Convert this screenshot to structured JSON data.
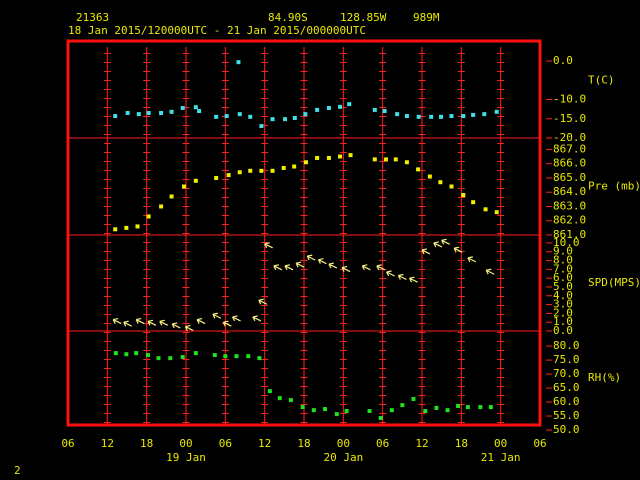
{
  "header": {
    "station": "21363",
    "latitude": "84.90S",
    "longitude": "128.85W",
    "elevation": "989M",
    "period": "18 Jan 2015/120000UTC - 21 Jan 2015/000000UTC"
  },
  "footer": "2",
  "chart_data": [
    {
      "type": "scatter",
      "ylabel": "T(C)",
      "color": "#40e0e8",
      "x": [
        13.2,
        15.1,
        16.8,
        18.3,
        20.2,
        21.8,
        23.5,
        25.5,
        26.0,
        28.6,
        30.2,
        32.0,
        32.2,
        33.8,
        35.5,
        37.2,
        39.1,
        40.6,
        42.2,
        44.0,
        45.8,
        47.5,
        48.9,
        52.8,
        54.3,
        56.2,
        57.7,
        59.5,
        61.4,
        62.9,
        64.5,
        66.3,
        67.8,
        69.5,
        71.4
      ],
      "values": [
        -14.3,
        -13.5,
        -13.8,
        -13.5,
        -13.5,
        -13.2,
        -12.2,
        -12.0,
        -13.0,
        -14.5,
        -14.3,
        -0.3,
        -13.8,
        -14.5,
        -16.9,
        -15.1,
        -15.1,
        -14.8,
        -13.8,
        -12.7,
        -12.2,
        -11.9,
        -11.2,
        -12.7,
        -13.0,
        -13.8,
        -14.3,
        -14.5,
        -14.5,
        -14.5,
        -14.3,
        -14.3,
        -14.0,
        -13.8,
        -13.2
      ],
      "ylim": [
        -20,
        5.2
      ],
      "yticks": [
        {
          "value": 0,
          "label": "0.0"
        },
        {
          "value": -10,
          "label": "-10.0"
        },
        {
          "value": -15,
          "label": "-15.0"
        },
        {
          "value": -20,
          "label": "-20.0"
        }
      ]
    },
    {
      "type": "scatter",
      "ylabel": "Pre (mb)",
      "color": "#f0f000",
      "x": [
        13.2,
        14.9,
        16.6,
        18.3,
        20.2,
        21.8,
        23.7,
        25.5,
        28.6,
        30.5,
        32.2,
        33.8,
        35.5,
        37.2,
        38.9,
        40.5,
        42.3,
        44.0,
        45.8,
        47.5,
        49.1,
        52.8,
        54.5,
        56.0,
        57.7,
        59.4,
        61.2,
        62.8,
        64.5,
        66.3,
        67.8,
        69.7,
        71.4
      ],
      "values": [
        861.4,
        861.5,
        861.6,
        862.3,
        863.0,
        863.7,
        864.4,
        864.8,
        865.0,
        865.2,
        865.4,
        865.5,
        865.5,
        865.5,
        865.7,
        865.8,
        866.1,
        866.4,
        866.4,
        866.5,
        866.6,
        866.3,
        866.3,
        866.3,
        866.1,
        865.6,
        865.1,
        864.7,
        864.4,
        863.8,
        863.3,
        862.8,
        862.6
      ],
      "ylim": [
        861,
        867.8
      ],
      "yticks": [
        {
          "value": 867,
          "label": "867.0"
        },
        {
          "value": 866,
          "label": "866.0"
        },
        {
          "value": 865,
          "label": "865.0"
        },
        {
          "value": 864,
          "label": "864.0"
        },
        {
          "value": 863,
          "label": "863.0"
        },
        {
          "value": 862,
          "label": "862.0"
        },
        {
          "value": 861,
          "label": "861.0"
        }
      ]
    },
    {
      "type": "wind",
      "ylabel": "SPD(MPS)",
      "color": "#f8f080",
      "x": [
        12.9,
        14.5,
        16.4,
        18.2,
        20.0,
        21.9,
        23.9,
        25.7,
        28.1,
        29.7,
        31.1,
        34.2,
        35.1,
        36.0,
        37.4,
        39.1,
        40.8,
        42.5,
        44.2,
        45.8,
        47.8,
        50.9,
        53.1,
        54.6,
        56.4,
        58.1,
        60.0,
        61.8,
        63.0,
        64.9,
        67.0,
        69.8
      ],
      "values": [
        1.3,
        1.0,
        1.3,
        1.1,
        1.1,
        0.8,
        0.5,
        1.3,
        1.9,
        1.0,
        1.6,
        1.6,
        3.5,
        9.9,
        7.4,
        7.4,
        7.7,
        8.5,
        8.1,
        7.6,
        7.2,
        7.4,
        7.4,
        6.7,
        6.3,
        6.0,
        9.2,
        10.0,
        10.3,
        9.4,
        8.3,
        6.9
      ],
      "ylim": [
        0,
        10.9
      ],
      "yticks": [
        {
          "value": 10,
          "label": "10.0"
        },
        {
          "value": 9,
          "label": "9.0"
        },
        {
          "value": 8,
          "label": "8.0"
        },
        {
          "value": 7,
          "label": "7.0"
        },
        {
          "value": 6,
          "label": "6.0"
        },
        {
          "value": 5,
          "label": "5.0"
        },
        {
          "value": 4,
          "label": "4.0"
        },
        {
          "value": 3,
          "label": "3.0"
        },
        {
          "value": 2,
          "label": "2.0"
        },
        {
          "value": 1,
          "label": "1.0"
        },
        {
          "value": 0,
          "label": "0.0"
        }
      ]
    },
    {
      "type": "scatter",
      "ylabel": "RH(%)",
      "color": "#20e020",
      "x": [
        13.3,
        14.9,
        16.4,
        18.2,
        19.8,
        21.6,
        23.5,
        25.5,
        28.4,
        30.0,
        31.7,
        33.5,
        35.2,
        36.8,
        38.3,
        40.0,
        41.8,
        43.5,
        45.2,
        47.0,
        48.5,
        52.0,
        53.7,
        55.4,
        57.0,
        58.7,
        60.5,
        62.2,
        63.9,
        65.5,
        67.0,
        68.9,
        70.5
      ],
      "values": [
        77.5,
        77.1,
        77.5,
        76.8,
        75.7,
        75.7,
        76.1,
        77.5,
        76.8,
        76.4,
        76.4,
        76.4,
        75.7,
        63.9,
        61.4,
        60.7,
        58.2,
        57.1,
        57.5,
        55.7,
        56.8,
        56.8,
        54.3,
        57.1,
        58.9,
        61.1,
        56.8,
        57.9,
        57.1,
        58.6,
        58.2,
        58.2,
        58.2
      ],
      "ylim": [
        51.8,
        85.4
      ],
      "yticks": [
        {
          "value": 80,
          "label": "80.0"
        },
        {
          "value": 75,
          "label": "75.0"
        },
        {
          "value": 70,
          "label": "70.0"
        },
        {
          "value": 65,
          "label": "65.0"
        },
        {
          "value": 60,
          "label": "60.0"
        },
        {
          "value": 55,
          "label": "55.0"
        },
        {
          "value": 50,
          "label": "50.0"
        }
      ],
      "xlim": [
        6,
        78
      ],
      "xticks": [
        {
          "value": 6,
          "label": "06"
        },
        12,
        18,
        {
          "value": 24,
          "label": "00"
        },
        {
          "value": 30,
          "label": "06"
        },
        {
          "value": 36,
          "label": "12"
        },
        {
          "value": 42,
          "label": "18"
        },
        {
          "value": 48,
          "label": "00"
        },
        {
          "value": 54,
          "label": "06"
        },
        {
          "value": 60,
          "label": "12"
        },
        {
          "value": 66,
          "label": "18"
        },
        {
          "value": 72,
          "label": "00"
        },
        {
          "value": 78,
          "label": "06"
        }
      ],
      "annotations": [
        {
          "x": 24,
          "text": "19 Jan"
        },
        {
          "x": 48,
          "text": "20 Jan"
        },
        {
          "x": 72,
          "text": "21 Jan"
        }
      ]
    }
  ]
}
